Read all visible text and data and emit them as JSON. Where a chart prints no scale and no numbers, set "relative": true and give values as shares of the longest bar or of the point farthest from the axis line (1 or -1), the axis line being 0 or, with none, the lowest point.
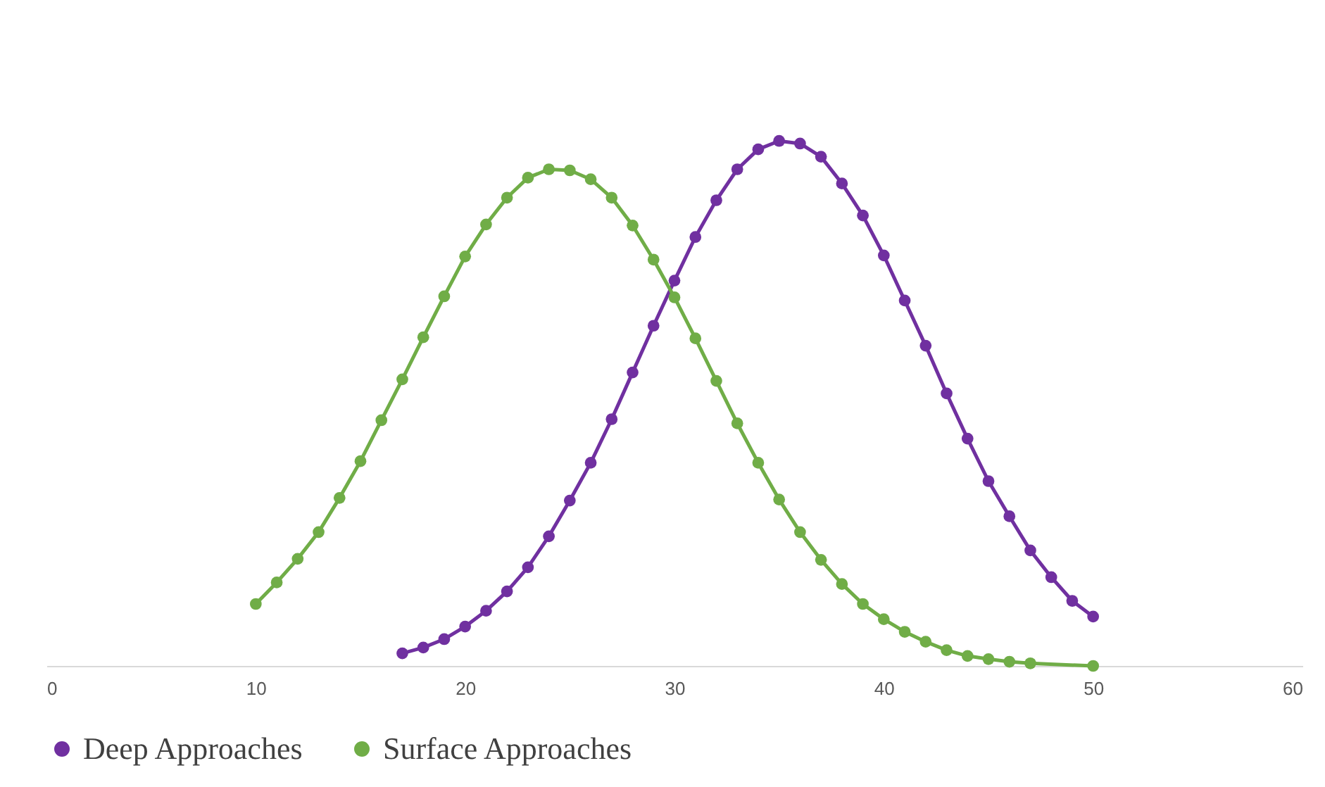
{
  "chart_data": {
    "type": "line",
    "relative": true,
    "xlim": [
      0,
      60
    ],
    "xticks": [
      0,
      10,
      20,
      30,
      40,
      50,
      60
    ],
    "series": [
      {
        "name": "Deep Approaches",
        "color": "#7030a0",
        "x": [
          17,
          18,
          19,
          20,
          21,
          22,
          23,
          24,
          25,
          26,
          27,
          28,
          29,
          30,
          31,
          32,
          33,
          34,
          35,
          36,
          37,
          38,
          39,
          40,
          41,
          42,
          43,
          44,
          45,
          46,
          47,
          48,
          49,
          50
        ],
        "values": [
          0.024,
          0.035,
          0.051,
          0.075,
          0.105,
          0.142,
          0.188,
          0.247,
          0.315,
          0.387,
          0.47,
          0.559,
          0.648,
          0.734,
          0.817,
          0.887,
          0.946,
          0.984,
          1,
          0.995,
          0.97,
          0.919,
          0.858,
          0.782,
          0.696,
          0.61,
          0.519,
          0.433,
          0.352,
          0.285,
          0.22,
          0.169,
          0.124,
          0.094
        ]
      },
      {
        "name": "Surface Approaches",
        "color": "#70ad47",
        "x": [
          10,
          11,
          12,
          13,
          14,
          15,
          16,
          17,
          18,
          19,
          20,
          21,
          22,
          23,
          24,
          25,
          26,
          27,
          28,
          29,
          30,
          31,
          32,
          33,
          34,
          35,
          36,
          37,
          38,
          39,
          40,
          41,
          42,
          43,
          44,
          45,
          46,
          47,
          50
        ],
        "values": [
          0.118,
          0.159,
          0.204,
          0.255,
          0.32,
          0.39,
          0.468,
          0.546,
          0.626,
          0.704,
          0.78,
          0.841,
          0.892,
          0.93,
          0.946,
          0.944,
          0.927,
          0.892,
          0.839,
          0.774,
          0.702,
          0.624,
          0.543,
          0.462,
          0.387,
          0.317,
          0.255,
          0.202,
          0.156,
          0.118,
          0.089,
          0.065,
          0.046,
          0.03,
          0.019,
          0.013,
          0.008,
          0.005,
          0
        ]
      }
    ],
    "legend": "bottom",
    "marker": "circle",
    "line_style": "solid",
    "grid": false
  }
}
